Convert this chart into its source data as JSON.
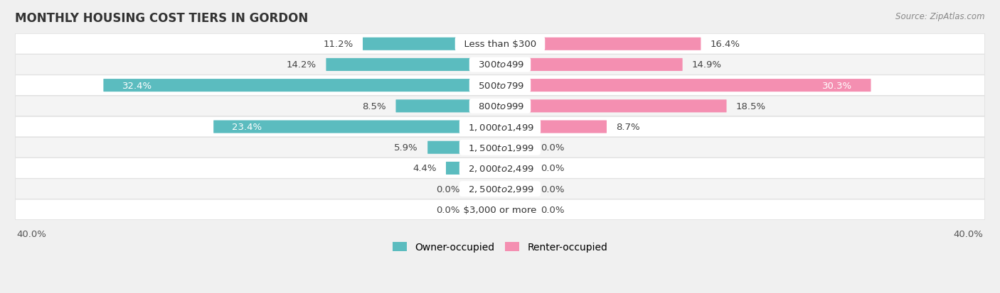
{
  "title": "MONTHLY HOUSING COST TIERS IN GORDON",
  "source": "Source: ZipAtlas.com",
  "categories": [
    "Less than $300",
    "$300 to $499",
    "$500 to $799",
    "$800 to $999",
    "$1,000 to $1,499",
    "$1,500 to $1,999",
    "$2,000 to $2,499",
    "$2,500 to $2,999",
    "$3,000 or more"
  ],
  "owner_values": [
    11.2,
    14.2,
    32.4,
    8.5,
    23.4,
    5.9,
    4.4,
    0.0,
    0.0
  ],
  "renter_values": [
    16.4,
    14.9,
    30.3,
    18.5,
    8.7,
    0.0,
    0.0,
    0.0,
    0.0
  ],
  "owner_color": "#5bbcbf",
  "renter_color": "#f48fb1",
  "axis_limit": 40.0,
  "background_color": "#f0f0f0",
  "row_bg_even": "#f8f8f8",
  "row_bg_odd": "#ececec",
  "bar_height": 0.58,
  "label_fontsize": 9.5,
  "title_fontsize": 12,
  "category_fontsize": 9.5,
  "axis_label_fontsize": 9.5,
  "legend_fontsize": 10,
  "zero_stub": 2.5,
  "inside_label_threshold": 20.0
}
